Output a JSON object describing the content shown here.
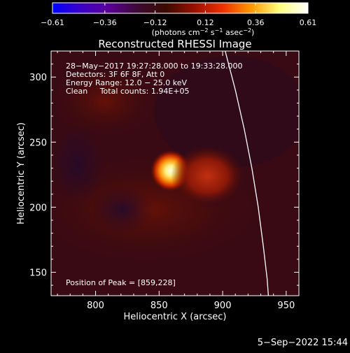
{
  "chart_data": {
    "type": "heatmap",
    "title": "Reconstructed RHESSI Image",
    "xlabel": "Heliocentric X (arcsec)",
    "ylabel": "Heliocentric Y (arcsec)",
    "xlim": [
      765,
      960
    ],
    "ylim": [
      132,
      320
    ],
    "xticks": [
      "800",
      "850",
      "900",
      "950"
    ],
    "xtick_values": [
      800,
      850,
      900,
      950
    ],
    "yticks": [
      "150",
      "200",
      "250",
      "300"
    ],
    "ytick_values": [
      150,
      200,
      250,
      300
    ],
    "colorbar": {
      "range": [
        -0.61,
        0.61
      ],
      "ticks": [
        "−0.61",
        "−0.36",
        "−0.12",
        "0.12",
        "0.36",
        "0.61"
      ],
      "tick_values": [
        -0.61,
        -0.36,
        -0.12,
        0.12,
        0.36,
        0.61
      ],
      "units_prefix": "(photons cm",
      "units_exp1": "−2",
      "units_mid": " s",
      "units_exp2": "−1",
      "units_mid2": " asec",
      "units_exp3": "−2",
      "units_suffix": ")"
    },
    "info": {
      "line1": "28−May−2017 19:27:28.000 to 19:33:28.000",
      "line2": "Detectors: 3F 6F 8F, Att 0",
      "line3": "Energy Range: 12.0 − 25.0 keV",
      "line4": "Clean     Total counts: 1.94E+05"
    },
    "peak_label": "Position of Peak = [859,228]",
    "peak": [
      859,
      228
    ],
    "sources": [
      {
        "x": 859,
        "y": 228,
        "value": 0.61,
        "sigma": 5
      },
      {
        "x": 888,
        "y": 224,
        "value": 0.27,
        "sigma": 9
      }
    ],
    "limb_points": [
      [
        902,
        320
      ],
      [
        910,
        290
      ],
      [
        917,
        260
      ],
      [
        923,
        230
      ],
      [
        928,
        200
      ],
      [
        932,
        170
      ],
      [
        935,
        145
      ],
      [
        936,
        132
      ]
    ],
    "limb_color": "#ffffff",
    "colormap": [
      "#0000ff",
      "#3c00c8",
      "#5a0096",
      "#3c0a32",
      "#3a0a00",
      "#9a1000",
      "#f03000",
      "#ff9a00",
      "#ffff80",
      "#ffffff"
    ]
  },
  "footer": {
    "timestamp": "5−Sep−2022 15:44"
  }
}
